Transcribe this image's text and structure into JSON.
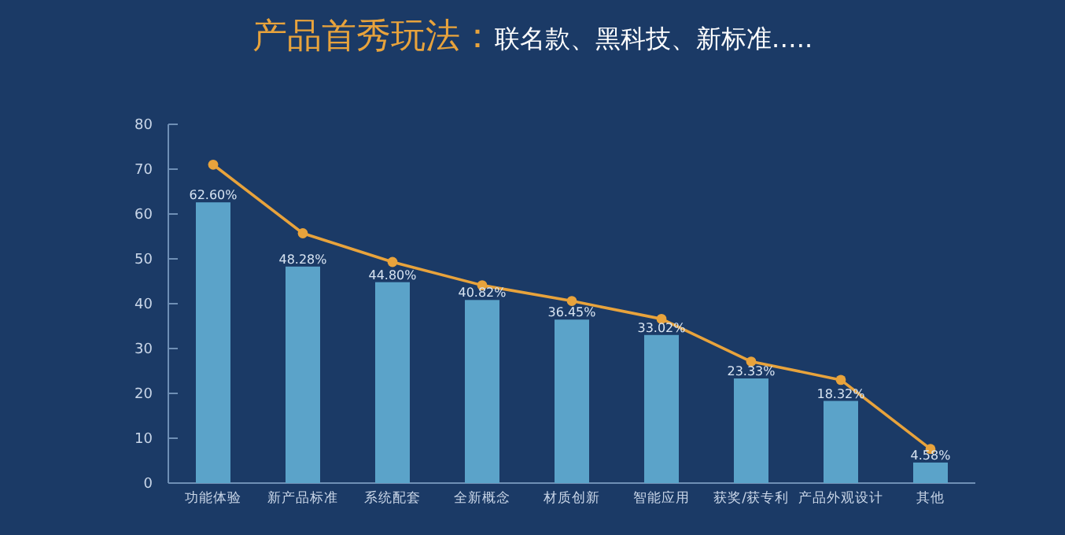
{
  "chart_data": {
    "type": "bar",
    "title": "产品首秀玩法：",
    "subtitle": "联名款、黑科技、新标准…..",
    "categories": [
      "功能体验",
      "新产品标准",
      "系统配套",
      "全新概念",
      "材质创新",
      "智能应用",
      "获奖/获专利",
      "产品外观设计",
      "其他"
    ],
    "series": [
      {
        "color": "#5ba3c9",
        "values": [
          62.6,
          48.28,
          44.8,
          40.82,
          36.45,
          33.02,
          23.33,
          18.32,
          4.58
        ],
        "value_labels": [
          "62.60%",
          "48.28%",
          "44.80%",
          "40.82%",
          "36.45%",
          "33.02%",
          "23.33%",
          "18.32%",
          "4.58%"
        ]
      },
      {
        "type": "line",
        "color": "#e8a33c",
        "marker": "circle",
        "values": [
          71,
          55.7,
          49.3,
          44.1,
          40.6,
          36.6,
          27.1,
          23,
          7.6
        ]
      }
    ],
    "ylim": [
      0,
      80
    ],
    "yticks": [
      0,
      10,
      20,
      30,
      40,
      50,
      60,
      70,
      80
    ],
    "grid": false
  }
}
